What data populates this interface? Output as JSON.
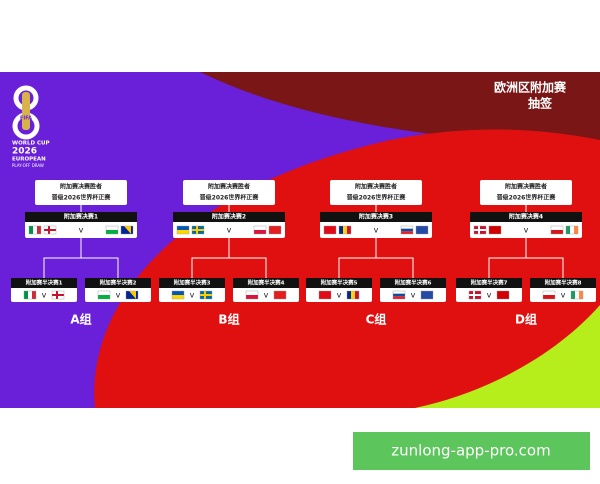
{
  "header": {
    "title": "欧洲区附加赛",
    "subtitle": "抽签"
  },
  "logo": {
    "brand": "FIFA",
    "line1": "WORLD CUP",
    "year": "2026",
    "line2": "EUROPEAN",
    "line3": "PLAY-OFF DRAW"
  },
  "groups": [
    {
      "label": "A组",
      "winner": [
        "附加赛决赛胜者",
        "晋级2026世界杯正赛"
      ],
      "final": "附加赛决赛1",
      "semis": [
        "附加赛半决赛1",
        "附加赛半决赛2"
      ]
    },
    {
      "label": "B组",
      "winner": [
        "附加赛决赛胜者",
        "晋级2026世界杯正赛"
      ],
      "final": "附加赛决赛2",
      "semis": [
        "附加赛半决赛3",
        "附加赛半决赛4"
      ]
    },
    {
      "label": "C组",
      "winner": [
        "附加赛决赛胜者",
        "晋级2026世界杯正赛"
      ],
      "final": "附加赛决赛3",
      "semis": [
        "附加赛半决赛5",
        "附加赛半决赛6"
      ]
    },
    {
      "label": "D组",
      "winner": [
        "附加赛决赛胜者",
        "晋级2026世界杯正赛"
      ],
      "final": "附加赛决赛4",
      "semis": [
        "附加赛半决赛7",
        "附加赛半决赛8"
      ]
    }
  ],
  "versus": "v",
  "watermark": "zunlong-app-pro.com"
}
